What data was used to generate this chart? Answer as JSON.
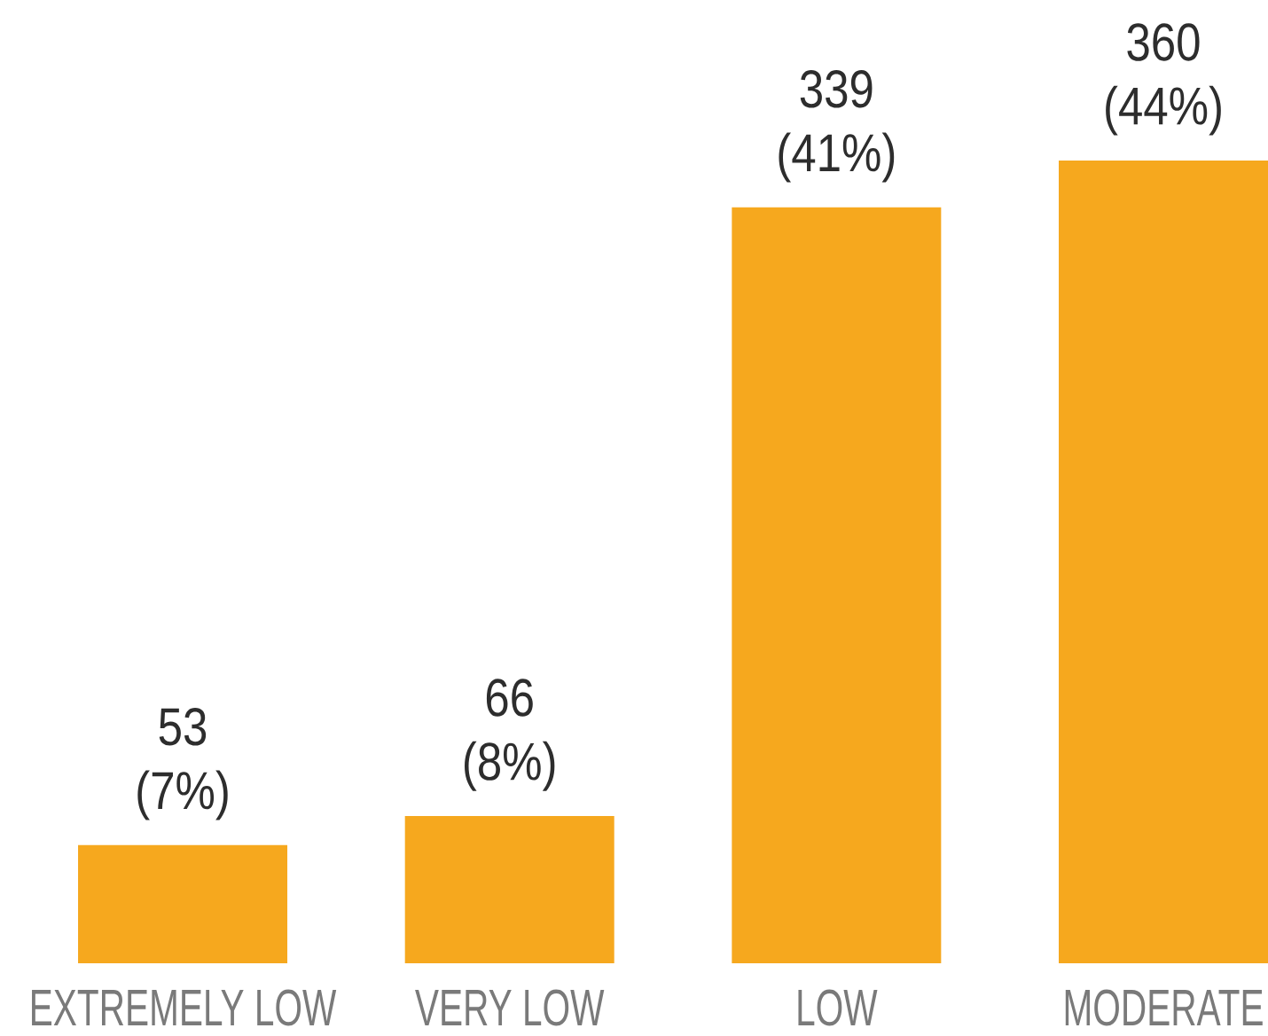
{
  "chart_data": {
    "type": "bar",
    "categories": [
      "EXTREMELY LOW",
      "VERY LOW",
      "LOW",
      "MODERATE"
    ],
    "values": [
      53,
      66,
      339,
      360
    ],
    "value_labels": [
      "53 (7%)",
      "66 (8%)",
      "339 (41%)",
      "360 (44%)"
    ],
    "color": "#f6a81e",
    "tick_labels": "x"
  }
}
